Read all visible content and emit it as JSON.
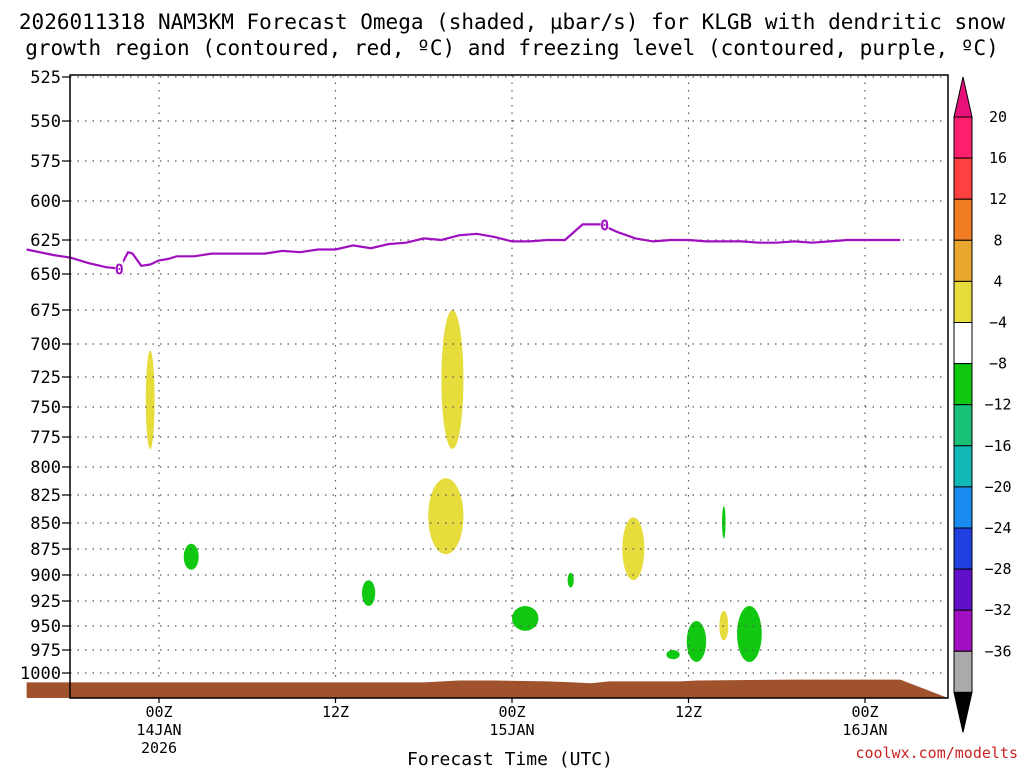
{
  "chart_data": {
    "type": "time-height",
    "title_line1": "2026011318 NAM3KM Forecast Omega (shaded, µbar/s) for KLGB with dendritic snow",
    "title_line2": "growth region (contoured, red, ºC) and freezing level (contoured, purple, ºC)",
    "xlabel": "Forecast Time (UTC)",
    "credit": "coolwx.com/modelts",
    "x_range_hours": [
      -15,
      84
    ],
    "x_ticks": [
      {
        "hour": 0,
        "label": "00Z",
        "sub1": "14JAN",
        "sub2": "2026"
      },
      {
        "hour": 20,
        "label": "12Z",
        "sub1": "",
        "sub2": ""
      },
      {
        "hour": 40,
        "label": "00Z",
        "sub1": "15JAN",
        "sub2": ""
      },
      {
        "hour": 60,
        "label": "12Z",
        "sub1": "",
        "sub2": ""
      },
      {
        "hour": 80,
        "label": "00Z",
        "sub1": "16JAN",
        "sub2": ""
      }
    ],
    "y_levels_mb": [
      525,
      550,
      575,
      600,
      625,
      650,
      675,
      700,
      725,
      750,
      775,
      800,
      825,
      850,
      875,
      900,
      925,
      950,
      975,
      1000
    ],
    "colorbar": {
      "labels": [
        "20",
        "16",
        "12",
        "8",
        "4",
        "−4",
        "−8",
        "−12",
        "−16",
        "−20",
        "−24",
        "−28",
        "−32",
        "−36"
      ],
      "colors": [
        "#ff1f6f",
        "#ff4040",
        "#f07c24",
        "#e8a830",
        "#e6dc3c",
        "#ffffff",
        "#10c810",
        "#18c078",
        "#10b8b8",
        "#1a8cf0",
        "#2040e0",
        "#6010c8",
        "#a010c0",
        "#aaaaaa"
      ],
      "top_arrow_color": "#e8117a",
      "bottom_arrow_color": "#000000"
    },
    "freezing_level": {
      "color": "#a010c0",
      "label": "0",
      "label_hours": [
        -4.5,
        50.5
      ],
      "hours": [
        -15,
        -12,
        -10,
        -8,
        -6,
        -4.5,
        -2,
        -1,
        0,
        1,
        2,
        4,
        6,
        8,
        10,
        12,
        -3.5,
        -3,
        14,
        16,
        18,
        20,
        22,
        24,
        26,
        28,
        30,
        32,
        34,
        36,
        38,
        40,
        42,
        44,
        46,
        48,
        50,
        52,
        54,
        56,
        58,
        60,
        62,
        64,
        66,
        68,
        70,
        72,
        74,
        76,
        78,
        80,
        82,
        84
      ],
      "pressure_mb": [
        632,
        636,
        638,
        642,
        645,
        646,
        644,
        643,
        640,
        639,
        637,
        637,
        635,
        635,
        635,
        635,
        634,
        635,
        633,
        634,
        632,
        632,
        629,
        631,
        628,
        627,
        624,
        625,
        622,
        621,
        623,
        626,
        626,
        625,
        625,
        615,
        615,
        620,
        624,
        626,
        625,
        625,
        626,
        626,
        626,
        627,
        627,
        626,
        627,
        626,
        625,
        625,
        625,
        625
      ]
    },
    "omega_regions": [
      {
        "band": "4 to 8",
        "color": "#e6dc3c",
        "hours": [
          -1.5,
          -0.5
        ],
        "pressure_mb": [
          705,
          785
        ]
      },
      {
        "band": "4 to 8",
        "color": "#e6dc3c",
        "hours": [
          32,
          34.5
        ],
        "pressure_mb": [
          675,
          785
        ]
      },
      {
        "band": "4 to 8",
        "color": "#e6dc3c",
        "hours": [
          30.5,
          34.5
        ],
        "pressure_mb": [
          810,
          880
        ]
      },
      {
        "band": "4 to 8",
        "color": "#e6dc3c",
        "hours": [
          52.5,
          55
        ],
        "pressure_mb": [
          845,
          905
        ]
      },
      {
        "band": "4 to 8",
        "color": "#e6dc3c",
        "hours": [
          63.5,
          64.5
        ],
        "pressure_mb": [
          935,
          965
        ]
      },
      {
        "band": "-4 to -8",
        "color": "#10c810",
        "hours": [
          2.8,
          4.5
        ],
        "pressure_mb": [
          870,
          895
        ]
      },
      {
        "band": "-4 to -8",
        "color": "#10c810",
        "hours": [
          23,
          24.5
        ],
        "pressure_mb": [
          905,
          930
        ]
      },
      {
        "band": "-4 to -8",
        "color": "#10c810",
        "hours": [
          40,
          43
        ],
        "pressure_mb": [
          930,
          955
        ]
      },
      {
        "band": "-4 to -8",
        "color": "#10c810",
        "hours": [
          46.3,
          47
        ],
        "pressure_mb": [
          898,
          912
        ]
      },
      {
        "band": "-4 to -8",
        "color": "#10c810",
        "hours": [
          57.5,
          59
        ],
        "pressure_mb": [
          975,
          985
        ]
      },
      {
        "band": "-4 to -8",
        "color": "#10c810",
        "hours": [
          59.8,
          62
        ],
        "pressure_mb": [
          945,
          988
        ]
      },
      {
        "band": "-4 to -8",
        "color": "#10c810",
        "hours": [
          65.5,
          68.3
        ],
        "pressure_mb": [
          930,
          988
        ]
      },
      {
        "band": "-4 to -8",
        "color": "#10c810",
        "hours": [
          63.8,
          64.2
        ],
        "pressure_mb": [
          835,
          865
        ]
      }
    ],
    "ground_color": "#a0522d",
    "grid": true
  }
}
